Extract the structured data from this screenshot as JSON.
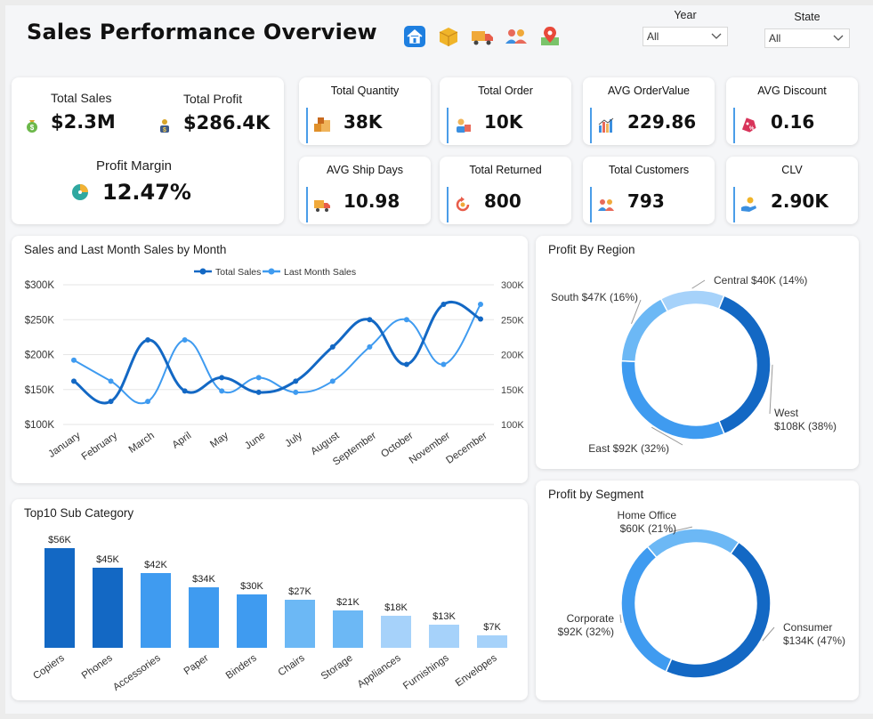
{
  "header": {
    "title": "Sales Performance Overview",
    "nav_icons": [
      "home-icon",
      "box-icon",
      "truck-icon",
      "customers-icon",
      "map-pin-icon"
    ]
  },
  "filters": {
    "year": {
      "label": "Year",
      "value": "All"
    },
    "state": {
      "label": "State",
      "value": "All"
    }
  },
  "main_kpis": {
    "total_sales": {
      "label": "Total Sales",
      "value": "$2.3M",
      "icon": "money-bag-icon"
    },
    "total_profit": {
      "label": "Total Profit",
      "value": "$286.4K",
      "icon": "profit-person-icon"
    },
    "profit_margin": {
      "label": "Profit Margin",
      "value": "12.47%",
      "icon": "pie-clock-icon"
    }
  },
  "kpis": [
    {
      "label": "Total Quantity",
      "value": "38K",
      "icon": "boxes-icon"
    },
    {
      "label": "Total Order",
      "value": "10K",
      "icon": "order-person-icon"
    },
    {
      "label": "AVG OrderValue",
      "value": "229.86",
      "icon": "bar-chart-icon"
    },
    {
      "label": "AVG Discount",
      "value": "0.16",
      "icon": "discount-tag-icon"
    },
    {
      "label": "AVG Ship Days",
      "value": "10.98",
      "icon": "truck-icon"
    },
    {
      "label": "Total Returned",
      "value": "800",
      "icon": "return-arrow-icon"
    },
    {
      "label": "Total Customers",
      "value": "793",
      "icon": "customers-icon"
    },
    {
      "label": "CLV",
      "value": "2.90K",
      "icon": "hand-coin-icon"
    }
  ],
  "colors": {
    "dark_blue": "#1368c4",
    "mid_blue": "#3f9bf0",
    "light_blue": "#6cb8f5",
    "pale_blue": "#a6d2fa",
    "card_bg": "#ffffff"
  },
  "chart_data": [
    {
      "type": "line",
      "title": "Sales and Last Month Sales by Month",
      "categories": [
        "January",
        "February",
        "March",
        "April",
        "May",
        "June",
        "July",
        "August",
        "September",
        "October",
        "November",
        "December"
      ],
      "series": [
        {
          "name": "Total Sales",
          "values": [
            162,
            133,
            221,
            148,
            167,
            146,
            162,
            211,
            250,
            186,
            272,
            251
          ],
          "color": "#1368c4"
        },
        {
          "name": "Last Month Sales",
          "values": [
            192,
            162,
            133,
            221,
            148,
            167,
            146,
            162,
            211,
            250,
            186,
            272
          ],
          "color": "#3f9bf0"
        }
      ],
      "y_left_ticks": [
        "$100K",
        "$150K",
        "$200K",
        "$250K",
        "$300K"
      ],
      "y_right_ticks": [
        "100K",
        "150K",
        "200K",
        "250K",
        "300K"
      ],
      "ylim": [
        100,
        300
      ],
      "legend": "top",
      "grid": true
    },
    {
      "type": "pie",
      "title": "Profit By Region",
      "slices": [
        {
          "name": "Central",
          "label": "Central $40K (14%)",
          "value": 40,
          "color": "#a6d2fa"
        },
        {
          "name": "West",
          "label_line1": "West",
          "label_line2": "$108K (38%)",
          "value": 108,
          "color": "#1368c4"
        },
        {
          "name": "East",
          "label": "East $92K (32%)",
          "value": 92,
          "color": "#3f9bf0"
        },
        {
          "name": "South",
          "label": "South $47K (16%)",
          "value": 47,
          "color": "#6cb8f5"
        }
      ]
    },
    {
      "type": "bar",
      "title": "Top10 Sub Category",
      "categories": [
        "Copiers",
        "Phones",
        "Accessories",
        "Paper",
        "Binders",
        "Chairs",
        "Storage",
        "Appliances",
        "Furnishings",
        "Envelopes"
      ],
      "values": [
        56,
        45,
        42,
        34,
        30,
        27,
        21,
        18,
        13,
        7
      ],
      "labels": [
        "$56K",
        "$45K",
        "$42K",
        "$34K",
        "$30K",
        "$27K",
        "$21K",
        "$18K",
        "$13K",
        "$7K"
      ],
      "colors": [
        "#1368c4",
        "#1368c4",
        "#3f9bf0",
        "#3f9bf0",
        "#3f9bf0",
        "#6cb8f5",
        "#6cb8f5",
        "#a6d2fa",
        "#a6d2fa",
        "#a6d2fa"
      ]
    },
    {
      "type": "pie",
      "title": "Profit by Segment",
      "slices": [
        {
          "name": "Consumer",
          "label_line1": "Consumer",
          "label_line2": "$134K (47%)",
          "value": 134,
          "color": "#1368c4"
        },
        {
          "name": "Corporate",
          "label_line1": "Corporate",
          "label_line2": "$92K (32%)",
          "value": 92,
          "color": "#3f9bf0"
        },
        {
          "name": "Home Office",
          "label_line1": "Home Office",
          "label_line2": "$60K (21%)",
          "value": 60,
          "color": "#6cb8f5"
        }
      ]
    }
  ]
}
